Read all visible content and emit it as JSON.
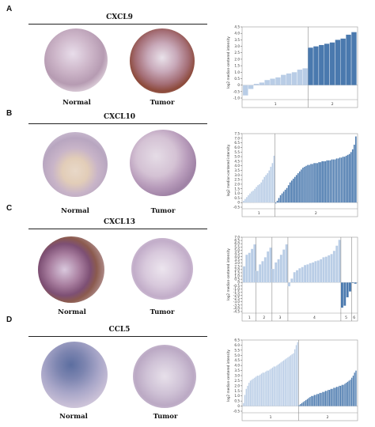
{
  "panels": [
    {
      "letter": "A",
      "gene": "CXCL9",
      "normal": "Normal",
      "tumor": "Tumor"
    },
    {
      "letter": "B",
      "gene": "CXCL10",
      "normal": "Normal",
      "tumor": "Tumor"
    },
    {
      "letter": "C",
      "gene": "CXCL13",
      "normal": "Normal",
      "tumor": "Tumor"
    },
    {
      "letter": "D",
      "gene": "CCL5",
      "normal": "Normal",
      "tumor": "Tumor"
    }
  ],
  "colors": {
    "normal_bar": "#b9cde6",
    "tumor_bar": "#4a79ae",
    "axis": "#555555"
  },
  "chart_data": [
    {
      "type": "bar",
      "ylabel": "log2 median-centered intensity",
      "ylim": [
        -1.0,
        4.5
      ],
      "yticks": [
        "-1.0",
        "-0.5",
        "0",
        "0.5",
        "1.0",
        "1.5",
        "2.0",
        "2.5",
        "3.0",
        "3.5",
        "4.0",
        "4.5"
      ],
      "groups": [
        {
          "label": "1",
          "values": [
            -0.8,
            -0.3,
            0.1,
            0.2,
            0.4,
            0.5,
            0.6,
            0.8,
            0.9,
            1.0,
            1.2,
            1.3
          ]
        },
        {
          "label": "2",
          "values": [
            2.9,
            3.0,
            3.1,
            3.2,
            3.3,
            3.5,
            3.6,
            3.9,
            4.1
          ]
        }
      ]
    },
    {
      "type": "bar",
      "ylabel": "log2 median-centered intensity",
      "ylim": [
        -0.5,
        7.5
      ],
      "yticks": [
        "-0.5",
        "0",
        "0.5",
        "1.0",
        "1.5",
        "2.0",
        "2.5",
        "3.0",
        "3.5",
        "4.0",
        "4.5",
        "5.0",
        "5.5",
        "6.0",
        "6.5",
        "7.0",
        "7.5"
      ],
      "groups": [
        {
          "label": "1",
          "values": [
            0.2,
            0.4,
            0.6,
            0.8,
            1.0,
            1.2,
            1.3,
            1.5,
            1.7,
            1.9,
            2.0,
            2.2,
            2.5,
            2.8,
            3.0,
            3.2,
            3.5,
            3.9,
            4.3,
            5.1
          ]
        },
        {
          "label": "2",
          "values": [
            -0.1,
            0.2,
            0.5,
            0.8,
            1.0,
            1.2,
            1.4,
            1.6,
            1.9,
            2.2,
            2.4,
            2.6,
            2.8,
            3.0,
            3.2,
            3.4,
            3.6,
            3.8,
            3.9,
            4.0,
            4.1,
            4.1,
            4.2,
            4.2,
            4.3,
            4.3,
            4.3,
            4.4,
            4.4,
            4.5,
            4.5,
            4.5,
            4.6,
            4.6,
            4.6,
            4.7,
            4.7,
            4.7,
            4.8,
            4.8,
            4.9,
            4.9,
            5.0,
            5.0,
            5.1,
            5.2,
            5.3,
            5.5,
            5.8,
            6.3,
            7.2
          ]
        }
      ]
    },
    {
      "type": "bar",
      "ylabel": "log2 median-centered intensity",
      "ylim": [
        -4.5,
        7.0
      ],
      "yticks": [
        "-4.5",
        "-4.0",
        "-3.5",
        "-3.0",
        "-2.5",
        "-2.0",
        "-1.5",
        "-1.0",
        "-0.5",
        "0",
        "0.5",
        "1.0",
        "1.5",
        "2.0",
        "2.5",
        "3.0",
        "3.5",
        "4.0",
        "4.5",
        "5.0",
        "5.5",
        "6.0",
        "6.5",
        "7.0"
      ],
      "groups": [
        {
          "label": "1",
          "values": [
            2.5,
            4.3,
            4.6,
            5.2,
            5.9
          ]
        },
        {
          "label": "2",
          "values": [
            1.8,
            2.8,
            3.3,
            3.9,
            4.8,
            5.4
          ]
        },
        {
          "label": "3",
          "values": [
            2.1,
            3.1,
            3.6,
            4.3,
            5.1,
            5.9
          ]
        },
        {
          "label": "4",
          "values": [
            -0.6,
            0.6,
            1.6,
            1.9,
            2.2,
            2.4,
            2.7,
            2.8,
            3.0,
            3.1,
            3.3,
            3.4,
            3.6,
            3.9,
            4.0,
            4.2,
            4.4,
            4.9,
            5.7,
            6.6
          ]
        },
        {
          "label": "5",
          "values": [
            -3.9,
            -3.6,
            -2.3,
            -1.4
          ]
        },
        {
          "label": "6",
          "values": [
            -0.1,
            -0.2
          ]
        }
      ]
    },
    {
      "type": "bar",
      "ylabel": "log2 median-centered intensity",
      "ylim": [
        -0.5,
        6.5
      ],
      "yticks": [
        "-0.5",
        "0",
        "0.5",
        "1.0",
        "1.5",
        "2.0",
        "2.5",
        "3.0",
        "3.5",
        "4.0",
        "4.5",
        "5.0",
        "5.5",
        "6.0",
        "6.5"
      ],
      "groups": [
        {
          "label": "1",
          "values": [
            0.3,
            1.1,
            1.7,
            2.0,
            2.3,
            2.5,
            2.6,
            2.7,
            2.8,
            2.9,
            3.0,
            3.0,
            3.1,
            3.2,
            3.3,
            3.3,
            3.4,
            3.5,
            3.5,
            3.6,
            3.7,
            3.8,
            3.9,
            3.9,
            4.0,
            4.1,
            4.2,
            4.3,
            4.4,
            4.5,
            4.6,
            4.7,
            4.8,
            4.9,
            5.0,
            5.1,
            5.2,
            5.6,
            6.0,
            6.3
          ]
        },
        {
          "label": "2",
          "values": [
            0.1,
            0.2,
            0.3,
            0.4,
            0.5,
            0.6,
            0.7,
            0.8,
            0.9,
            1.0,
            1.0,
            1.1,
            1.1,
            1.2,
            1.2,
            1.3,
            1.3,
            1.4,
            1.4,
            1.5,
            1.5,
            1.6,
            1.6,
            1.7,
            1.7,
            1.8,
            1.8,
            1.9,
            1.9,
            2.0,
            2.0,
            2.1,
            2.1,
            2.2,
            2.3,
            2.4,
            2.5,
            2.6,
            2.8,
            3.0,
            3.3,
            3.5
          ]
        }
      ]
    }
  ]
}
